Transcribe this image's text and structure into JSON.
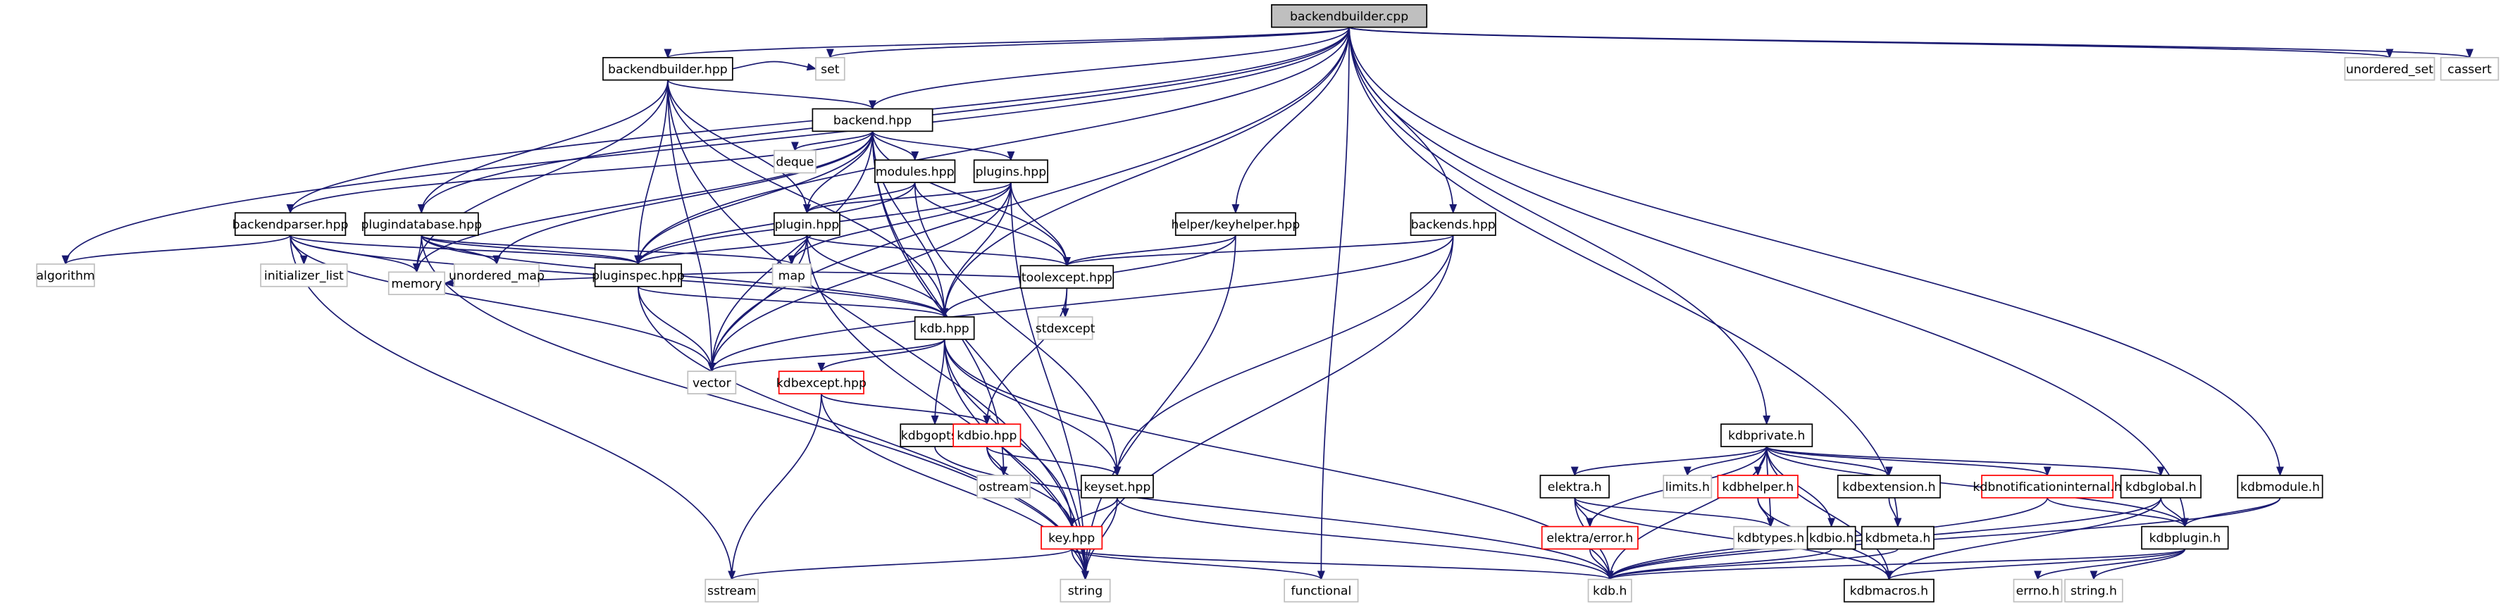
{
  "graph": {
    "root": "backendbuilder.cpp",
    "colors": {
      "edge": "#191970",
      "root_fill": "#bfbfbf",
      "node_border": "#000000",
      "system_border": "#bfbfbf",
      "incomplete_border": "#ff0000"
    },
    "nodes": [
      {
        "id": "backendbuilder.cpp",
        "kind": "root"
      },
      {
        "id": "backendbuilder.hpp",
        "kind": "normal"
      },
      {
        "id": "set",
        "kind": "system"
      },
      {
        "id": "unordered_set",
        "kind": "system"
      },
      {
        "id": "cassert",
        "kind": "system"
      },
      {
        "id": "backend.hpp",
        "kind": "normal"
      },
      {
        "id": "deque",
        "kind": "system"
      },
      {
        "id": "modules.hpp",
        "kind": "normal"
      },
      {
        "id": "plugins.hpp",
        "kind": "normal"
      },
      {
        "id": "helper/keyhelper.hpp",
        "kind": "normal"
      },
      {
        "id": "backends.hpp",
        "kind": "normal"
      },
      {
        "id": "backendparser.hpp",
        "kind": "normal"
      },
      {
        "id": "plugindatabase.hpp",
        "kind": "normal"
      },
      {
        "id": "plugin.hpp",
        "kind": "normal"
      },
      {
        "id": "algorithm",
        "kind": "system"
      },
      {
        "id": "initializer_list",
        "kind": "system"
      },
      {
        "id": "unordered_map",
        "kind": "system"
      },
      {
        "id": "pluginspec.hpp",
        "kind": "normal"
      },
      {
        "id": "map",
        "kind": "system"
      },
      {
        "id": "toolexcept.hpp",
        "kind": "normal"
      },
      {
        "id": "memory",
        "kind": "system"
      },
      {
        "id": "kdb.hpp",
        "kind": "normal"
      },
      {
        "id": "stdexcept",
        "kind": "system"
      },
      {
        "id": "vector",
        "kind": "system"
      },
      {
        "id": "kdbexcept.hpp",
        "kind": "incomplete"
      },
      {
        "id": "kdbgopts.h",
        "kind": "normal"
      },
      {
        "id": "kdbio.hpp",
        "kind": "incomplete"
      },
      {
        "id": "ostream",
        "kind": "system"
      },
      {
        "id": "keyset.hpp",
        "kind": "normal"
      },
      {
        "id": "key.hpp",
        "kind": "incomplete"
      },
      {
        "id": "sstream",
        "kind": "system"
      },
      {
        "id": "string",
        "kind": "system"
      },
      {
        "id": "functional",
        "kind": "system"
      },
      {
        "id": "kdb.h",
        "kind": "system"
      },
      {
        "id": "kdbmacros.h",
        "kind": "normal"
      },
      {
        "id": "errno.h",
        "kind": "system"
      },
      {
        "id": "string.h",
        "kind": "system"
      },
      {
        "id": "kdbprivate.h",
        "kind": "normal"
      },
      {
        "id": "elektra.h",
        "kind": "normal"
      },
      {
        "id": "limits.h",
        "kind": "system"
      },
      {
        "id": "kdbhelper.h",
        "kind": "incomplete"
      },
      {
        "id": "kdbextension.h",
        "kind": "normal"
      },
      {
        "id": "kdbnotificationinternal.h",
        "kind": "incomplete"
      },
      {
        "id": "kdbglobal.h",
        "kind": "normal"
      },
      {
        "id": "kdbmodule.h",
        "kind": "normal"
      },
      {
        "id": "elektra/error.h",
        "kind": "incomplete"
      },
      {
        "id": "kdbtypes.h",
        "kind": "system"
      },
      {
        "id": "kdbio.h",
        "kind": "normal"
      },
      {
        "id": "kdbmeta.h",
        "kind": "normal"
      },
      {
        "id": "kdbplugin.h",
        "kind": "normal"
      }
    ],
    "edges": [
      [
        "backendbuilder.cpp",
        "backendbuilder.hpp"
      ],
      [
        "backendbuilder.cpp",
        "set"
      ],
      [
        "backendbuilder.cpp",
        "unordered_set"
      ],
      [
        "backendbuilder.cpp",
        "cassert"
      ],
      [
        "backendbuilder.cpp",
        "backend.hpp"
      ],
      [
        "backendbuilder.cpp",
        "backendparser.hpp"
      ],
      [
        "backendbuilder.cpp",
        "plugindatabase.hpp"
      ],
      [
        "backendbuilder.cpp",
        "pluginspec.hpp"
      ],
      [
        "backendbuilder.cpp",
        "algorithm"
      ],
      [
        "backendbuilder.cpp",
        "vector"
      ],
      [
        "backendbuilder.cpp",
        "helper/keyhelper.hpp"
      ],
      [
        "backendbuilder.cpp",
        "backends.hpp"
      ],
      [
        "backendbuilder.cpp",
        "kdb.hpp"
      ],
      [
        "backendbuilder.cpp",
        "functional"
      ],
      [
        "backendbuilder.cpp",
        "kdbprivate.h"
      ],
      [
        "backendbuilder.cpp",
        "kdbmeta.h"
      ],
      [
        "backendbuilder.cpp",
        "kdbplugin.h"
      ],
      [
        "backendbuilder.cpp",
        "kdbmodule.h"
      ],
      [
        "backendbuilder.hpp",
        "backend.hpp"
      ],
      [
        "backendbuilder.hpp",
        "set"
      ],
      [
        "backendbuilder.hpp",
        "plugindatabase.hpp"
      ],
      [
        "backendbuilder.hpp",
        "pluginspec.hpp"
      ],
      [
        "backendbuilder.hpp",
        "plugin.hpp"
      ],
      [
        "backendbuilder.hpp",
        "kdb.hpp"
      ],
      [
        "backendbuilder.hpp",
        "memory"
      ],
      [
        "backendbuilder.hpp",
        "vector"
      ],
      [
        "backendbuilder.hpp",
        "string"
      ],
      [
        "backend.hpp",
        "deque"
      ],
      [
        "backend.hpp",
        "modules.hpp"
      ],
      [
        "backend.hpp",
        "plugins.hpp"
      ],
      [
        "backend.hpp",
        "plugin.hpp"
      ],
      [
        "backend.hpp",
        "pluginspec.hpp"
      ],
      [
        "backend.hpp",
        "toolexcept.hpp"
      ],
      [
        "backend.hpp",
        "kdb.hpp"
      ],
      [
        "backend.hpp",
        "memory"
      ],
      [
        "backend.hpp",
        "vector"
      ],
      [
        "backend.hpp",
        "unordered_map"
      ],
      [
        "backend.hpp",
        "backendparser.hpp"
      ],
      [
        "backend.hpp",
        "string"
      ],
      [
        "backend.hpp",
        "ostream"
      ],
      [
        "modules.hpp",
        "plugin.hpp"
      ],
      [
        "modules.hpp",
        "toolexcept.hpp"
      ],
      [
        "modules.hpp",
        "keyset.hpp"
      ],
      [
        "modules.hpp",
        "pluginspec.hpp"
      ],
      [
        "plugins.hpp",
        "plugin.hpp"
      ],
      [
        "plugins.hpp",
        "toolexcept.hpp"
      ],
      [
        "plugins.hpp",
        "kdb.hpp"
      ],
      [
        "plugins.hpp",
        "map"
      ],
      [
        "plugins.hpp",
        "vector"
      ],
      [
        "plugins.hpp",
        "string"
      ],
      [
        "plugins.hpp",
        "pluginspec.hpp"
      ],
      [
        "helper/keyhelper.hpp",
        "toolexcept.hpp"
      ],
      [
        "helper/keyhelper.hpp",
        "kdb.hpp"
      ],
      [
        "helper/keyhelper.hpp",
        "string"
      ],
      [
        "backends.hpp",
        "toolexcept.hpp"
      ],
      [
        "backends.hpp",
        "keyset.hpp"
      ],
      [
        "backends.hpp",
        "string"
      ],
      [
        "backends.hpp",
        "vector"
      ],
      [
        "backendparser.hpp",
        "algorithm"
      ],
      [
        "backendparser.hpp",
        "initializer_list"
      ],
      [
        "backendparser.hpp",
        "pluginspec.hpp"
      ],
      [
        "backendparser.hpp",
        "memory"
      ],
      [
        "backendparser.hpp",
        "vector"
      ],
      [
        "backendparser.hpp",
        "kdb.hpp"
      ],
      [
        "backendparser.hpp",
        "sstream"
      ],
      [
        "plugindatabase.hpp",
        "pluginspec.hpp"
      ],
      [
        "plugindatabase.hpp",
        "unordered_map"
      ],
      [
        "plugindatabase.hpp",
        "map"
      ],
      [
        "plugindatabase.hpp",
        "memory"
      ],
      [
        "plugindatabase.hpp",
        "kdb.hpp"
      ],
      [
        "plugindatabase.hpp",
        "string"
      ],
      [
        "plugin.hpp",
        "pluginspec.hpp"
      ],
      [
        "plugin.hpp",
        "map"
      ],
      [
        "plugin.hpp",
        "toolexcept.hpp"
      ],
      [
        "plugin.hpp",
        "kdb.hpp"
      ],
      [
        "plugin.hpp",
        "vector"
      ],
      [
        "plugin.hpp",
        "string"
      ],
      [
        "pluginspec.hpp",
        "vector"
      ],
      [
        "pluginspec.hpp",
        "string"
      ],
      [
        "pluginspec.hpp",
        "kdb.hpp"
      ],
      [
        "toolexcept.hpp",
        "stdexcept"
      ],
      [
        "toolexcept.hpp",
        "memory"
      ],
      [
        "toolexcept.hpp",
        "kdbio.hpp"
      ],
      [
        "kdb.hpp",
        "vector"
      ],
      [
        "kdb.hpp",
        "kdbexcept.hpp"
      ],
      [
        "kdb.hpp",
        "kdbgopts.h"
      ],
      [
        "kdb.hpp",
        "keyset.hpp"
      ],
      [
        "kdb.hpp",
        "key.hpp"
      ],
      [
        "kdb.hpp",
        "string"
      ],
      [
        "kdb.hpp",
        "kdb.h"
      ],
      [
        "kdbexcept.hpp",
        "kdbio.hpp"
      ],
      [
        "kdbexcept.hpp",
        "sstream"
      ],
      [
        "kdbexcept.hpp",
        "string"
      ],
      [
        "kdbio.hpp",
        "ostream"
      ],
      [
        "kdbio.hpp",
        "keyset.hpp"
      ],
      [
        "kdbio.hpp",
        "key.hpp"
      ],
      [
        "keyset.hpp",
        "key.hpp"
      ],
      [
        "keyset.hpp",
        "string"
      ],
      [
        "keyset.hpp",
        "kdb.h"
      ],
      [
        "key.hpp",
        "sstream"
      ],
      [
        "key.hpp",
        "string"
      ],
      [
        "key.hpp",
        "functional"
      ],
      [
        "key.hpp",
        "kdb.h"
      ],
      [
        "kdbgopts.h",
        "kdb.h"
      ],
      [
        "kdbprivate.h",
        "elektra.h"
      ],
      [
        "kdbprivate.h",
        "limits.h"
      ],
      [
        "kdbprivate.h",
        "kdbhelper.h"
      ],
      [
        "kdbprivate.h",
        "kdbextension.h"
      ],
      [
        "kdbprivate.h",
        "kdbnotificationinternal.h"
      ],
      [
        "kdbprivate.h",
        "kdbglobal.h"
      ],
      [
        "kdbprivate.h",
        "kdbplugin.h"
      ],
      [
        "kdbprivate.h",
        "elektra/error.h"
      ],
      [
        "kdbprivate.h",
        "kdbtypes.h"
      ],
      [
        "kdbprivate.h",
        "kdbio.h"
      ],
      [
        "kdbprivate.h",
        "kdb.h"
      ],
      [
        "kdbprivate.h",
        "kdbmacros.h"
      ],
      [
        "elektra.h",
        "elektra/error.h"
      ],
      [
        "elektra.h",
        "kdb.h"
      ],
      [
        "elektra.h",
        "kdbtypes.h"
      ],
      [
        "elektra.h",
        "kdbmacros.h"
      ],
      [
        "elektra/error.h",
        "kdb.h"
      ],
      [
        "kdbhelper.h",
        "kdbtypes.h"
      ],
      [
        "kdbhelper.h",
        "kdbmacros.h"
      ],
      [
        "kdbextension.h",
        "kdbmeta.h"
      ],
      [
        "kdbio.h",
        "kdb.h"
      ],
      [
        "kdbmeta.h",
        "kdb.h"
      ],
      [
        "kdbnotificationinternal.h",
        "kdb.h"
      ],
      [
        "kdbnotificationinternal.h",
        "kdbplugin.h"
      ],
      [
        "kdbglobal.h",
        "kdb.h"
      ],
      [
        "kdbglobal.h",
        "kdbmacros.h"
      ],
      [
        "kdbglobal.h",
        "kdbplugin.h"
      ],
      [
        "kdbmodule.h",
        "kdbplugin.h"
      ],
      [
        "kdbmodule.h",
        "kdb.h"
      ],
      [
        "kdbplugin.h",
        "kdb.h"
      ],
      [
        "kdbplugin.h",
        "kdbmacros.h"
      ],
      [
        "kdbplugin.h",
        "errno.h"
      ],
      [
        "kdbplugin.h",
        "string.h"
      ]
    ]
  }
}
